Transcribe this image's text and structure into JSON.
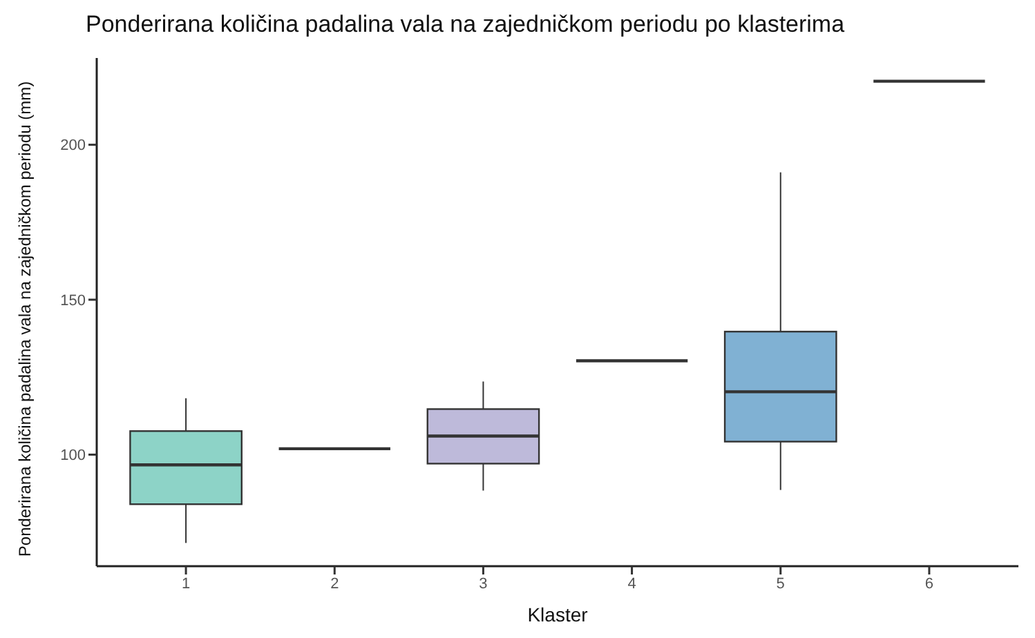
{
  "chart_data": {
    "type": "box",
    "title": "Ponderirana količina padalina vala na zajedničkom periodu po klasterima",
    "xlabel": "Klaster",
    "ylabel": "Ponderirana količina padalina vala na zajedničkom periodu (mm)",
    "categories": [
      "1",
      "2",
      "3",
      "4",
      "5",
      "6"
    ],
    "colors": [
      "#8dd3c7",
      null,
      "#bebada",
      null,
      "#80b1d3",
      null
    ],
    "boxes": [
      {
        "low": 71.5,
        "q1": 84,
        "median": 96.7,
        "q3": 107.6,
        "high": 118.2
      },
      {
        "low": 101.9,
        "q1": 101.9,
        "median": 101.9,
        "q3": 101.9,
        "high": 101.9
      },
      {
        "low": 88.4,
        "q1": 97.1,
        "median": 106,
        "q3": 114.7,
        "high": 123.6
      },
      {
        "low": 130.3,
        "q1": 130.3,
        "median": 130.3,
        "q3": 130.3,
        "high": 130.3
      },
      {
        "low": 88.6,
        "q1": 104.2,
        "median": 120.3,
        "q3": 139.7,
        "high": 191.1
      },
      {
        "low": 220.5,
        "q1": 220.5,
        "median": 220.5,
        "q3": 220.5,
        "high": 220.5
      }
    ],
    "ylim": [
      64,
      228
    ],
    "yticks": [
      100,
      150,
      200
    ],
    "grid": false
  }
}
